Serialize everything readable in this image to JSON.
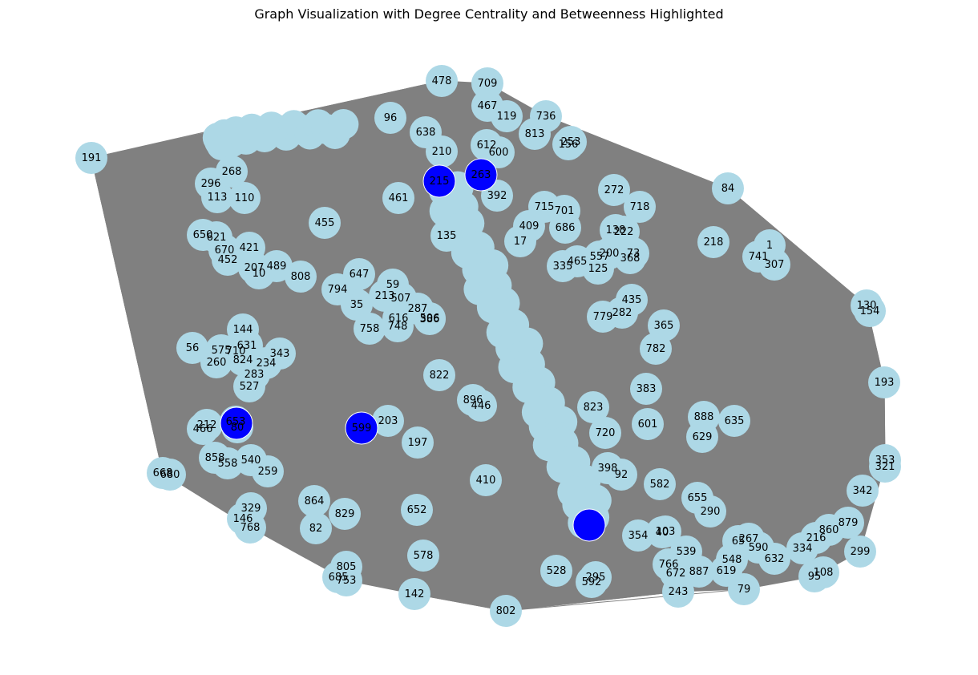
{
  "title": "Graph Visualization with Degree Centrality and Betweenness Highlighted",
  "colors": {
    "node": "#add8e6",
    "highlight": "#0000ff",
    "edge": "#808080",
    "hull": "#808080"
  },
  "diagram": {
    "hull_labels": [
      "191",
      "478",
      "709",
      "736",
      "84",
      "1",
      "130",
      "154",
      "193",
      "353",
      "321",
      "299",
      "108",
      "95",
      "79",
      "243",
      "802",
      "142",
      "753",
      "685",
      "768",
      "146",
      "680",
      "668"
    ],
    "highlighted": [
      "215",
      "263",
      "599",
      "653",
      "1"
    ],
    "nodes": [
      "478",
      "709",
      "467",
      "119",
      "736",
      "813",
      "156",
      "253",
      "191",
      "84",
      "1",
      "741",
      "307",
      "218",
      "272",
      "718",
      "138",
      "222",
      "200",
      "73",
      "368",
      "125",
      "557",
      "465",
      "335",
      "130",
      "154",
      "193",
      "435",
      "282",
      "779",
      "365",
      "782",
      "383",
      "601",
      "823",
      "720",
      "398",
      "92",
      "582",
      "888",
      "635",
      "629",
      "353",
      "321",
      "342",
      "879",
      "860",
      "216",
      "334",
      "299",
      "108",
      "95",
      "632",
      "590",
      "267",
      "65",
      "548",
      "619",
      "79",
      "887",
      "243",
      "672",
      "766",
      "539",
      "354",
      "40",
      "103",
      "290",
      "655",
      "802",
      "592",
      "295",
      "528",
      "142",
      "805",
      "753",
      "685",
      "578",
      "652",
      "410",
      "82",
      "864",
      "829",
      "329",
      "146",
      "768",
      "668",
      "680",
      "259",
      "540",
      "558",
      "858",
      "466",
      "212",
      "80",
      "653",
      "527",
      "283",
      "234",
      "824",
      "260",
      "575",
      "56",
      "144",
      "631",
      "343",
      "710",
      "203",
      "599",
      "197",
      "822",
      "896",
      "446",
      "506",
      "386",
      "748",
      "287",
      "616",
      "59",
      "507",
      "213",
      "35",
      "758",
      "647",
      "794",
      "822",
      "808",
      "489",
      "207",
      "10",
      "655",
      "421",
      "452",
      "670",
      "621",
      "650",
      "601",
      "113",
      "110",
      "296",
      "268",
      "455",
      "461",
      "409",
      "715",
      "701",
      "686",
      "17",
      "135",
      "392",
      "600",
      "612",
      "210",
      "638",
      "96"
    ]
  }
}
